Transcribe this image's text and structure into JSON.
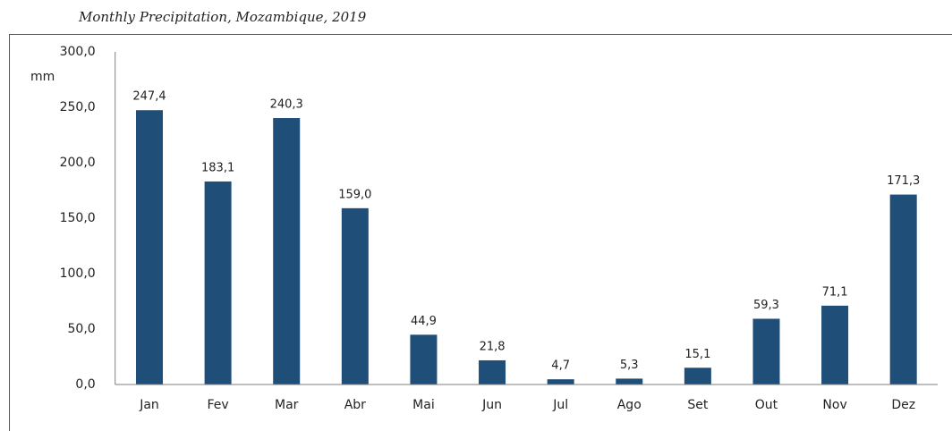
{
  "chart_data": {
    "type": "bar",
    "title": "Monthly Precipitation, Mozambique, 2019",
    "y_label": "mm",
    "categories": [
      "Jan",
      "Fev",
      "Mar",
      "Abr",
      "Mai",
      "Jun",
      "Jul",
      "Ago",
      "Set",
      "Out",
      "Nov",
      "Dez"
    ],
    "values": [
      247.4,
      183.1,
      240.3,
      159.0,
      44.9,
      21.8,
      4.7,
      5.3,
      15.1,
      59.3,
      71.1,
      171.3
    ],
    "value_labels": [
      "247,4",
      "183,1",
      "240,3",
      "159,0",
      "44,9",
      "21,8",
      "4,7",
      "5,3",
      "15,1",
      "59,3",
      "71,1",
      "171,3"
    ],
    "color": "#1f4e79",
    "ylim": [
      0,
      300
    ],
    "yticks": [
      {
        "value": 0,
        "label": "0,0"
      },
      {
        "value": 50,
        "label": "50,0"
      },
      {
        "value": 100,
        "label": "100,0"
      },
      {
        "value": 150,
        "label": "150,0"
      },
      {
        "value": 200,
        "label": "200,0"
      },
      {
        "value": 250,
        "label": "250,0"
      },
      {
        "value": 300,
        "label": "300,0"
      }
    ],
    "grid": false
  }
}
